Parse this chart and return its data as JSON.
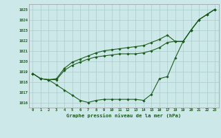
{
  "title": "Graphe pression niveau de la mer (hPa)",
  "bg_color": "#cce8e8",
  "grid_color": "#aacccc",
  "line_color": "#1a5c1a",
  "marker_color": "#1a5c1a",
  "ylim": [
    1015.5,
    1025.5
  ],
  "yticks": [
    1016,
    1017,
    1018,
    1019,
    1020,
    1021,
    1022,
    1023,
    1024,
    1025
  ],
  "xlim": [
    -0.5,
    23.5
  ],
  "xticks": [
    0,
    1,
    2,
    3,
    4,
    5,
    6,
    7,
    8,
    9,
    10,
    11,
    12,
    13,
    14,
    15,
    16,
    17,
    18,
    19,
    20,
    21,
    22,
    23
  ],
  "series1": [
    1018.8,
    1018.3,
    1018.2,
    1017.7,
    1017.2,
    1016.7,
    1016.2,
    1016.0,
    1016.2,
    1016.3,
    1016.3,
    1016.3,
    1016.3,
    1016.3,
    1016.2,
    1016.8,
    1018.3,
    1018.5,
    1020.3,
    1021.9,
    1023.0,
    1024.0,
    1024.5,
    1025.0
  ],
  "series2": [
    1018.8,
    1018.3,
    1018.2,
    1018.2,
    1019.1,
    1019.6,
    1019.9,
    1020.2,
    1020.4,
    1020.5,
    1020.6,
    1020.7,
    1020.7,
    1020.7,
    1020.8,
    1021.0,
    1021.3,
    1021.8,
    1021.9,
    1021.9,
    1023.0,
    1024.0,
    1024.5,
    1025.0
  ],
  "series3": [
    1018.8,
    1018.3,
    1018.2,
    1018.3,
    1019.3,
    1019.9,
    1020.2,
    1020.5,
    1020.8,
    1021.0,
    1021.1,
    1021.2,
    1021.3,
    1021.4,
    1021.5,
    1021.8,
    1022.1,
    1022.5,
    1021.9,
    1021.9,
    1023.0,
    1024.0,
    1024.5,
    1025.0
  ],
  "figsize": [
    3.2,
    2.0
  ],
  "dpi": 100
}
